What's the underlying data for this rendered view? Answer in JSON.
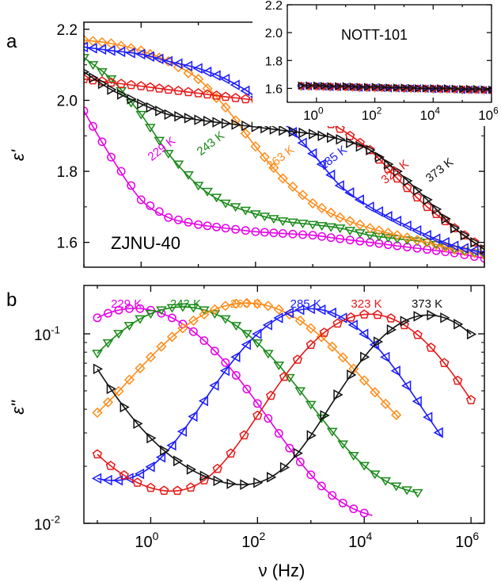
{
  "figure": {
    "panel_a_label": "a",
    "panel_b_label": "b",
    "x_axis_label": "ν (Hz)",
    "y_axis_label_a": "ε'",
    "y_axis_label_b": "ε\"",
    "sample_label_a": "ZJNU-40",
    "inset_label": "NOTT-101"
  },
  "chart_data": [
    {
      "id": "panel_a",
      "type": "scatter",
      "title": "ZJNU-40",
      "xlabel": "ν (Hz)",
      "ylabel": "ε'",
      "xscale": "log",
      "xlim": [
        0.1,
        1000000
      ],
      "ylim": [
        1.53,
        2.22
      ],
      "yticks": [
        1.6,
        1.8,
        2.0,
        2.2
      ],
      "ytick_labels": [
        "1.6",
        "1.8",
        "2.0",
        "2.2"
      ],
      "x": [
        0.1,
        0.3,
        1,
        3,
        10,
        30,
        100,
        300,
        1000,
        3000,
        10000,
        30000,
        100000,
        300000,
        1000000
      ],
      "series": [
        {
          "name": "229 K",
          "color": "#e600e6",
          "marker": "circle",
          "label_pos": [
            2.5,
            1.855
          ],
          "values": [
            1.97,
            1.84,
            1.72,
            1.67,
            1.65,
            1.64,
            1.63,
            1.625,
            1.62,
            1.61,
            1.6,
            1.59,
            1.58,
            1.57,
            1.555
          ]
        },
        {
          "name": "243 K",
          "color": "#1a8a1a",
          "marker": "triangle-down",
          "label_pos": [
            18,
            1.87
          ],
          "values": [
            2.12,
            2.06,
            1.96,
            1.85,
            1.76,
            1.71,
            1.68,
            1.66,
            1.65,
            1.64,
            1.62,
            1.61,
            1.6,
            1.58,
            1.565
          ]
        },
        {
          "name": "263 K",
          "color": "#ff8c1a",
          "marker": "diamond",
          "label_pos": [
            300,
            1.83
          ],
          "values": [
            2.17,
            2.16,
            2.14,
            2.11,
            2.06,
            1.98,
            1.87,
            1.78,
            1.71,
            1.67,
            1.64,
            1.62,
            1.6,
            1.58,
            1.565
          ]
        },
        {
          "name": "285 K",
          "color": "#1a1aff",
          "marker": "triangle-left",
          "label_pos": [
            2500,
            1.83
          ],
          "values": [
            2.15,
            2.14,
            2.13,
            2.11,
            2.09,
            2.06,
            2.01,
            1.94,
            1.85,
            1.76,
            1.7,
            1.66,
            1.62,
            1.59,
            1.57
          ]
        },
        {
          "name": "323 K",
          "color": "#e61a1a",
          "marker": "pentagon",
          "label_pos": [
            30000,
            1.79
          ],
          "values": [
            2.06,
            2.05,
            2.04,
            2.03,
            2.02,
            2.01,
            2.0,
            1.985,
            1.96,
            1.92,
            1.86,
            1.78,
            1.7,
            1.64,
            1.58
          ]
        },
        {
          "name": "373 K",
          "color": "#111111",
          "marker": "triangle-right",
          "label_pos": [
            180000,
            1.795
          ],
          "values": [
            2.08,
            2.03,
            1.99,
            1.96,
            1.945,
            1.935,
            1.925,
            1.915,
            1.905,
            1.89,
            1.86,
            1.8,
            1.72,
            1.64,
            1.58
          ]
        }
      ]
    },
    {
      "id": "panel_a_inset",
      "type": "scatter",
      "title": "NOTT-101",
      "xscale": "log",
      "xlim": [
        0.1,
        1000000
      ],
      "ylim": [
        1.5,
        2.2
      ],
      "yticks": [
        1.6,
        1.8,
        2.0,
        2.2
      ],
      "ytick_labels": [
        "1.6",
        "1.8",
        "2.0",
        "2.2"
      ],
      "xticks": [
        1,
        100,
        10000,
        1000000
      ],
      "xtick_labels": [
        {
          "base": "10",
          "exp": "0"
        },
        {
          "base": "10",
          "exp": "2"
        },
        {
          "base": "10",
          "exp": "4"
        },
        {
          "base": "10",
          "exp": "6"
        }
      ],
      "x": [
        0.3,
        1,
        3,
        10,
        30,
        100,
        300,
        1000,
        3000,
        10000,
        30000,
        100000,
        300000,
        1000000
      ],
      "series": [
        {
          "name": "229 K",
          "color": "#e600e6",
          "marker": "circle",
          "values": [
            1.61,
            1.61,
            1.605,
            1.605,
            1.6,
            1.6,
            1.6,
            1.595,
            1.595,
            1.59,
            1.59,
            1.585,
            1.585,
            1.58
          ]
        },
        {
          "name": "243 K",
          "color": "#1a8a1a",
          "marker": "triangle-down",
          "values": [
            1.61,
            1.61,
            1.605,
            1.605,
            1.6,
            1.6,
            1.6,
            1.595,
            1.595,
            1.59,
            1.59,
            1.585,
            1.585,
            1.58
          ]
        },
        {
          "name": "263 K",
          "color": "#ff8c1a",
          "marker": "diamond",
          "values": [
            1.615,
            1.61,
            1.61,
            1.605,
            1.605,
            1.6,
            1.6,
            1.6,
            1.595,
            1.595,
            1.59,
            1.59,
            1.585,
            1.585
          ]
        },
        {
          "name": "285 K",
          "color": "#1a1aff",
          "marker": "triangle-left",
          "values": [
            1.615,
            1.615,
            1.61,
            1.61,
            1.605,
            1.605,
            1.6,
            1.6,
            1.6,
            1.595,
            1.595,
            1.59,
            1.59,
            1.585
          ]
        },
        {
          "name": "323 K",
          "color": "#e61a1a",
          "marker": "pentagon",
          "values": [
            1.62,
            1.615,
            1.615,
            1.61,
            1.61,
            1.605,
            1.605,
            1.6,
            1.6,
            1.6,
            1.595,
            1.595,
            1.59,
            1.59
          ]
        },
        {
          "name": "373 K",
          "color": "#111111",
          "marker": "triangle-right",
          "values": [
            1.62,
            1.62,
            1.615,
            1.615,
            1.61,
            1.61,
            1.605,
            1.605,
            1.6,
            1.6,
            1.6,
            1.595,
            1.595,
            1.59
          ]
        }
      ]
    },
    {
      "id": "panel_b",
      "type": "scatter",
      "xlabel": "ν (Hz)",
      "ylabel": "ε\"",
      "xscale": "log",
      "yscale": "log",
      "xlim": [
        0.056,
        1780000
      ],
      "ylim": [
        0.01,
        0.18
      ],
      "xticks": [
        1,
        100,
        10000,
        1000000
      ],
      "xtick_labels": [
        {
          "base": "10",
          "exp": "0"
        },
        {
          "base": "10",
          "exp": "2"
        },
        {
          "base": "10",
          "exp": "4"
        },
        {
          "base": "10",
          "exp": "6"
        }
      ],
      "yticks": [
        0.01,
        0.1
      ],
      "ytick_labels": [
        {
          "base": "10",
          "exp": "-2"
        },
        {
          "base": "10",
          "exp": "-1"
        }
      ],
      "series": [
        {
          "name": "229 K",
          "color": "#e600e6",
          "marker": "circle",
          "label_x": 0.35,
          "peak_logf": -0.3,
          "width": 1.4,
          "peak": 0.126,
          "floor": 0.012,
          "xmin": 0.1,
          "xmax": 15000,
          "marker_step": 0.2
        },
        {
          "name": "243 K",
          "color": "#1a8a1a",
          "marker": "triangle-down",
          "label_x": 4.5,
          "peak_logf": 0.6,
          "width": 1.4,
          "peak": 0.125,
          "floor": 0.016,
          "xmin": 0.1,
          "xmax": 100000,
          "marker_step": 0.2
        },
        {
          "name": "263 K",
          "color": "#ff8c1a",
          "marker": "diamond",
          "label_x": 60,
          "peak_logf": 1.8,
          "width": 1.4,
          "peak": 0.125,
          "floor": 0.024,
          "xmin": 0.1,
          "xmax": 50000,
          "marker_step": 0.2
        },
        {
          "name": "285 K",
          "color": "#1a1aff",
          "marker": "triangle-left",
          "label_x": 800,
          "peak_logf": 3.0,
          "width": 1.2,
          "peak": 0.122,
          "floor": 0.016,
          "xmin": 0.1,
          "xmax": 300000,
          "marker_step": 0.2
        },
        {
          "name": "323 K",
          "color": "#e61a1a",
          "marker": "pentagon",
          "label_x": 11000,
          "peak_logf": 4.1,
          "width": 1.2,
          "peak": 0.115,
          "floor": 0.014,
          "xmin": 0.1,
          "xmax": 1000000,
          "marker_step": 0.25
        },
        {
          "name": "373 K",
          "color": "#111111",
          "marker": "triangle-right",
          "label_x": 150000,
          "peak_logf": 5.2,
          "width": 1.1,
          "peak": 0.112,
          "floor": 0.016,
          "xmin": 0.1,
          "xmax": 1000000,
          "marker_step": 0.25
        }
      ]
    }
  ]
}
